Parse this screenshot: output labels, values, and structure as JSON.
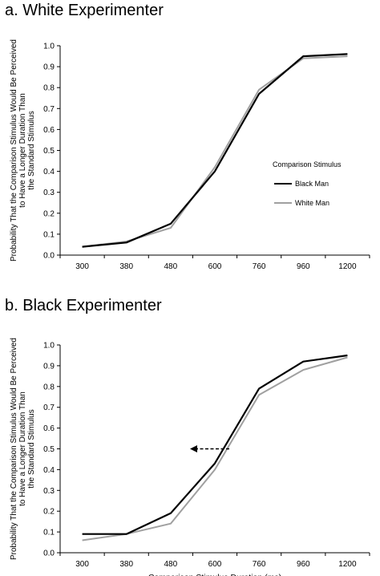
{
  "chart_data": [
    {
      "type": "line",
      "title": "a. White Experimenter",
      "xlabel": "",
      "ylabel": "Probability That the Comparison Stimulus Would Be Perceived to Have a Longer Duration Than the Standard Stimulus",
      "categories": [
        "300",
        "380",
        "480",
        "600",
        "760",
        "960",
        "1200"
      ],
      "ylim": [
        0,
        1.0
      ],
      "yticks": [
        "0.0",
        "0.1",
        "0.2",
        "0.3",
        "0.4",
        "0.5",
        "0.6",
        "0.7",
        "0.8",
        "0.9",
        "1.0"
      ],
      "grid": false,
      "legend_title": "Comparison Stimulus",
      "legend_position": "right",
      "series": [
        {
          "name": "Black Man",
          "color": "#000000",
          "values": [
            0.04,
            0.06,
            0.15,
            0.4,
            0.77,
            0.95,
            0.96
          ]
        },
        {
          "name": "White Man",
          "color": "#a0a0a0",
          "values": [
            0.04,
            0.065,
            0.13,
            0.42,
            0.79,
            0.94,
            0.95
          ]
        }
      ]
    },
    {
      "type": "line",
      "title": "b. Black Experimenter",
      "xlabel": "Comparison Stimulus Duration (ms)",
      "ylabel": "Probability That the Comparison Stimulus Would Be Perceived to Have a Longer Duration Than the Standard Stimulus",
      "categories": [
        "300",
        "380",
        "480",
        "600",
        "760",
        "960",
        "1200"
      ],
      "ylim": [
        0,
        1.0
      ],
      "yticks": [
        "0.0",
        "0.1",
        "0.2",
        "0.3",
        "0.4",
        "0.5",
        "0.6",
        "0.7",
        "0.8",
        "0.9",
        "1.0"
      ],
      "grid": false,
      "annotation": "dashed arrow pointing left at y = 0.5",
      "series": [
        {
          "name": "Black Man",
          "color": "#000000",
          "values": [
            0.09,
            0.09,
            0.19,
            0.43,
            0.79,
            0.92,
            0.95
          ]
        },
        {
          "name": "White Man",
          "color": "#a0a0a0",
          "values": [
            0.06,
            0.09,
            0.14,
            0.4,
            0.76,
            0.88,
            0.94
          ]
        }
      ]
    }
  ]
}
